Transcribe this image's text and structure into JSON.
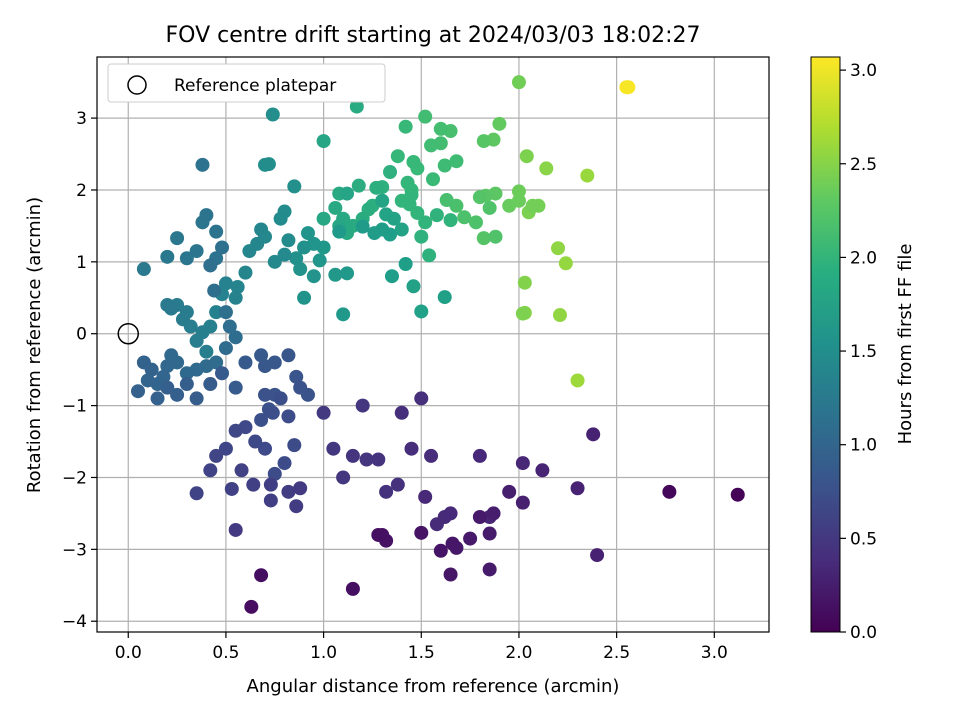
{
  "chart_data": {
    "type": "scatter",
    "title": "FOV centre drift starting at 2024/03/03 18:02:27",
    "xlabel": "Angular distance from reference (arcmin)",
    "ylabel": "Rotation from reference (arcmin)",
    "xlim": [
      -0.16,
      3.28
    ],
    "ylim": [
      -4.15,
      3.85
    ],
    "xticks": [
      "0.0",
      "0.5",
      "1.0",
      "1.5",
      "2.0",
      "2.5",
      "3.0"
    ],
    "xtick_values": [
      0,
      0.5,
      1.0,
      1.5,
      2.0,
      2.5,
      3.0
    ],
    "yticks": [
      "3",
      "2",
      "1",
      "0",
      "−1",
      "−2",
      "−3",
      "−4"
    ],
    "ytick_values": [
      3,
      2,
      1,
      0,
      -1,
      -2,
      -3,
      -4
    ],
    "grid": true,
    "legend": {
      "label": "Reference platepar",
      "placement": "top-left"
    },
    "reference_point": {
      "x": 0.0,
      "y": 0.0
    },
    "colorbar": {
      "label": "Hours from first FF file",
      "range": [
        0.0,
        3.07
      ],
      "ticks": [
        "0.0",
        "0.5",
        "1.0",
        "1.5",
        "2.0",
        "2.5",
        "3.0"
      ],
      "tick_values": [
        0,
        0.5,
        1.0,
        1.5,
        2.0,
        2.5,
        3.0
      ],
      "colormap": "viridis"
    },
    "points": [
      [
        2.56,
        3.43,
        3.05
      ],
      [
        2.55,
        3.43,
        3.04
      ],
      [
        2.3,
        -0.65,
        2.62
      ],
      [
        2.24,
        0.98,
        2.58
      ],
      [
        2.21,
        0.26,
        2.56
      ],
      [
        2.2,
        1.19,
        2.55
      ],
      [
        2.35,
        2.2,
        2.6
      ],
      [
        2.14,
        2.3,
        2.52
      ],
      [
        2.03,
        0.29,
        2.5
      ],
      [
        2.03,
        0.71,
        2.49
      ],
      [
        2.02,
        0.28,
        2.47
      ],
      [
        2.05,
        1.69,
        2.45
      ],
      [
        2.04,
        2.47,
        2.46
      ],
      [
        2.1,
        1.78,
        2.42
      ],
      [
        2.07,
        1.78,
        2.41
      ],
      [
        2.0,
        3.5,
        2.4
      ],
      [
        2.0,
        1.98,
        2.38
      ],
      [
        2.0,
        1.85,
        2.37
      ],
      [
        1.95,
        1.78,
        2.35
      ],
      [
        1.9,
        2.92,
        2.32
      ],
      [
        1.87,
        2.7,
        2.3
      ],
      [
        1.88,
        1.95,
        2.28
      ],
      [
        1.83,
        1.92,
        2.27
      ],
      [
        1.82,
        2.68,
        2.26
      ],
      [
        1.82,
        1.33,
        2.25
      ],
      [
        1.8,
        1.9,
        2.24
      ],
      [
        1.88,
        1.35,
        2.22
      ],
      [
        1.85,
        1.75,
        2.21
      ],
      [
        1.78,
        1.55,
        2.2
      ],
      [
        1.72,
        1.62,
        2.19
      ],
      [
        1.68,
        1.78,
        2.18
      ],
      [
        1.63,
        1.86,
        2.16
      ],
      [
        1.65,
        2.82,
        2.16
      ],
      [
        1.6,
        2.85,
        2.14
      ],
      [
        1.6,
        2.65,
        2.13
      ],
      [
        1.55,
        2.62,
        2.12
      ],
      [
        1.52,
        3.02,
        2.12
      ],
      [
        1.68,
        2.4,
        2.11
      ],
      [
        1.62,
        2.34,
        2.1
      ],
      [
        1.56,
        2.15,
        2.08
      ],
      [
        1.48,
        2.3,
        2.07
      ],
      [
        1.46,
        2.39,
        2.06
      ],
      [
        1.42,
        2.88,
        2.06
      ],
      [
        1.38,
        2.47,
        2.05
      ],
      [
        1.45,
        2.0,
        2.04
      ],
      [
        1.43,
        2.1,
        2.03
      ],
      [
        1.45,
        1.93,
        2.02
      ],
      [
        1.44,
        1.8,
        2.01
      ],
      [
        1.4,
        1.85,
        2.0
      ],
      [
        1.48,
        1.68,
        2.0
      ],
      [
        1.52,
        1.55,
        1.99
      ],
      [
        1.65,
        1.58,
        1.99
      ],
      [
        1.58,
        1.65,
        1.98
      ],
      [
        1.5,
        1.35,
        1.97
      ],
      [
        1.54,
        1.09,
        1.96
      ],
      [
        1.34,
        2.25,
        1.95
      ],
      [
        1.3,
        2.04,
        1.94
      ],
      [
        1.27,
        2.03,
        1.93
      ],
      [
        1.25,
        1.78,
        1.92
      ],
      [
        1.23,
        1.73,
        1.91
      ],
      [
        1.18,
        2.06,
        1.9
      ],
      [
        1.2,
        1.6,
        1.89
      ],
      [
        1.17,
        3.16,
        1.88
      ],
      [
        1.15,
        1.5,
        1.87
      ],
      [
        1.12,
        1.4,
        1.86
      ],
      [
        1.08,
        1.95,
        1.85
      ],
      [
        1.1,
        1.6,
        1.84
      ],
      [
        1.06,
        1.75,
        1.84
      ],
      [
        1.0,
        1.6,
        1.83
      ],
      [
        1.0,
        2.68,
        1.82
      ],
      [
        1.08,
        1.5,
        1.81
      ],
      [
        1.12,
        1.95,
        1.8
      ],
      [
        1.3,
        1.85,
        1.79
      ],
      [
        1.32,
        1.66,
        1.78
      ],
      [
        1.36,
        1.6,
        1.77
      ],
      [
        1.4,
        1.45,
        1.76
      ],
      [
        1.46,
        0.66,
        1.75
      ],
      [
        1.5,
        0.31,
        1.74
      ],
      [
        1.62,
        0.51,
        1.73
      ],
      [
        1.42,
        0.97,
        1.72
      ],
      [
        1.35,
        0.8,
        1.71
      ],
      [
        1.34,
        1.38,
        1.7
      ],
      [
        1.3,
        1.45,
        1.69
      ],
      [
        1.26,
        1.4,
        1.68
      ],
      [
        1.2,
        1.49,
        1.67
      ],
      [
        1.08,
        1.42,
        1.66
      ],
      [
        1.1,
        0.27,
        1.65
      ],
      [
        1.12,
        0.84,
        1.64
      ],
      [
        1.06,
        0.82,
        1.63
      ],
      [
        1.0,
        1.2,
        1.62
      ],
      [
        0.98,
        1.02,
        1.61
      ],
      [
        0.95,
        1.25,
        1.6
      ],
      [
        0.92,
        1.4,
        1.59
      ],
      [
        0.95,
        0.8,
        1.58
      ],
      [
        0.9,
        0.5,
        1.57
      ],
      [
        0.88,
        0.9,
        1.56
      ],
      [
        0.86,
        1.05,
        1.55
      ],
      [
        0.9,
        1.2,
        1.54
      ],
      [
        0.85,
        2.05,
        1.53
      ],
      [
        0.72,
        2.36,
        1.52
      ],
      [
        0.74,
        3.05,
        1.51
      ],
      [
        0.7,
        2.35,
        1.5
      ],
      [
        0.8,
        1.7,
        1.49
      ],
      [
        0.78,
        1.6,
        1.48
      ],
      [
        0.82,
        1.3,
        1.47
      ],
      [
        0.8,
        1.1,
        1.46
      ],
      [
        0.75,
        1.0,
        1.45
      ],
      [
        0.7,
        1.35,
        1.44
      ],
      [
        0.68,
        1.45,
        1.43
      ],
      [
        0.66,
        1.25,
        1.42
      ],
      [
        0.62,
        1.15,
        1.41
      ],
      [
        0.6,
        0.85,
        1.4
      ],
      [
        0.56,
        0.65,
        1.39
      ],
      [
        0.55,
        0.5,
        1.38
      ],
      [
        0.5,
        0.7,
        1.37
      ],
      [
        0.48,
        0.55,
        1.36
      ],
      [
        0.45,
        0.3,
        1.35
      ],
      [
        0.42,
        0.1,
        1.34
      ],
      [
        0.4,
        -0.25,
        1.33
      ],
      [
        0.38,
        0.02,
        1.32
      ],
      [
        0.35,
        -0.1,
        1.31
      ],
      [
        0.32,
        0.1,
        1.3
      ],
      [
        0.3,
        0.3,
        1.29
      ],
      [
        0.28,
        0.2,
        1.28
      ],
      [
        0.25,
        0.4,
        1.27
      ],
      [
        0.22,
        0.35,
        1.26
      ],
      [
        0.2,
        0.4,
        1.25
      ],
      [
        0.08,
        0.9,
        1.24
      ],
      [
        0.2,
        1.07,
        1.23
      ],
      [
        0.25,
        1.33,
        1.22
      ],
      [
        0.3,
        1.05,
        1.21
      ],
      [
        0.35,
        1.15,
        1.2
      ],
      [
        0.38,
        1.55,
        1.19
      ],
      [
        0.4,
        1.65,
        1.18
      ],
      [
        0.45,
        1.42,
        1.17
      ],
      [
        0.38,
        2.35,
        1.16
      ],
      [
        0.45,
        1.05,
        1.15
      ],
      [
        0.48,
        1.2,
        1.14
      ],
      [
        0.42,
        0.95,
        1.13
      ],
      [
        0.44,
        0.6,
        1.12
      ],
      [
        0.5,
        0.3,
        1.11
      ],
      [
        0.52,
        0.1,
        1.1
      ],
      [
        0.55,
        -0.05,
        1.09
      ],
      [
        0.5,
        -0.2,
        1.08
      ],
      [
        0.45,
        -0.4,
        1.07
      ],
      [
        0.4,
        -0.45,
        1.06
      ],
      [
        0.35,
        -0.5,
        1.05
      ],
      [
        0.3,
        -0.55,
        1.04
      ],
      [
        0.25,
        -0.4,
        1.03
      ],
      [
        0.22,
        -0.3,
        1.02
      ],
      [
        0.2,
        -0.45,
        1.01
      ],
      [
        0.18,
        -0.6,
        1.0
      ],
      [
        0.15,
        -0.7,
        0.99
      ],
      [
        0.1,
        -0.65,
        0.98
      ],
      [
        0.12,
        -0.5,
        0.97
      ],
      [
        0.08,
        -0.4,
        0.96
      ],
      [
        0.05,
        -0.8,
        0.95
      ],
      [
        0.15,
        -0.9,
        0.94
      ],
      [
        0.2,
        -0.75,
        0.93
      ],
      [
        0.25,
        -0.85,
        0.92
      ],
      [
        0.3,
        -0.7,
        0.91
      ],
      [
        0.35,
        -0.9,
        0.9
      ],
      [
        0.42,
        -0.7,
        0.89
      ],
      [
        0.48,
        -0.55,
        0.88
      ],
      [
        0.55,
        -0.75,
        0.87
      ],
      [
        0.6,
        -0.4,
        0.86
      ],
      [
        0.68,
        -0.3,
        0.85
      ],
      [
        0.7,
        -0.45,
        0.84
      ],
      [
        0.75,
        -0.4,
        0.83
      ],
      [
        0.82,
        -0.3,
        0.82
      ],
      [
        0.86,
        -0.6,
        0.81
      ],
      [
        0.88,
        -0.75,
        0.8
      ],
      [
        0.92,
        -0.85,
        0.79
      ],
      [
        0.75,
        -0.85,
        0.78
      ],
      [
        0.7,
        -0.85,
        0.77
      ],
      [
        0.72,
        -1.05,
        0.76
      ],
      [
        0.68,
        -1.2,
        0.75
      ],
      [
        0.74,
        -1.1,
        0.74
      ],
      [
        0.78,
        -0.9,
        0.73
      ],
      [
        0.82,
        -1.15,
        0.72
      ],
      [
        0.85,
        -1.55,
        0.71
      ],
      [
        0.8,
        -1.8,
        0.7
      ],
      [
        0.75,
        -1.95,
        0.69
      ],
      [
        0.7,
        -1.6,
        0.68
      ],
      [
        0.65,
        -1.5,
        0.67
      ],
      [
        0.6,
        -1.3,
        0.66
      ],
      [
        0.55,
        -1.35,
        0.65
      ],
      [
        0.5,
        -1.6,
        0.64
      ],
      [
        0.45,
        -1.7,
        0.63
      ],
      [
        0.42,
        -1.9,
        0.62
      ],
      [
        0.35,
        -2.22,
        0.61
      ],
      [
        0.53,
        -2.16,
        0.6
      ],
      [
        0.58,
        -1.9,
        0.59
      ],
      [
        0.64,
        -2.1,
        0.58
      ],
      [
        0.73,
        -2.1,
        0.57
      ],
      [
        0.73,
        -2.32,
        0.56
      ],
      [
        0.82,
        -2.2,
        0.55
      ],
      [
        0.86,
        -2.4,
        0.54
      ],
      [
        0.88,
        -2.15,
        0.53
      ],
      [
        0.55,
        -2.73,
        0.52
      ],
      [
        1.0,
        -1.1,
        0.51
      ],
      [
        1.05,
        -1.6,
        0.5
      ],
      [
        1.1,
        -2.0,
        0.49
      ],
      [
        1.2,
        -1.0,
        0.48
      ],
      [
        1.15,
        -1.7,
        0.47
      ],
      [
        1.22,
        -1.75,
        0.46
      ],
      [
        1.28,
        -1.75,
        0.45
      ],
      [
        1.32,
        -2.2,
        0.44
      ],
      [
        1.38,
        -2.1,
        0.43
      ],
      [
        1.4,
        -1.1,
        0.42
      ],
      [
        1.5,
        -0.9,
        0.41
      ],
      [
        1.45,
        -1.6,
        0.4
      ],
      [
        1.55,
        -1.7,
        0.39
      ],
      [
        1.58,
        -2.65,
        0.38
      ],
      [
        1.62,
        -2.55,
        0.37
      ],
      [
        1.65,
        -2.5,
        0.36
      ],
      [
        1.52,
        -2.27,
        0.35
      ],
      [
        1.8,
        -1.7,
        0.34
      ],
      [
        2.02,
        -1.8,
        0.33
      ],
      [
        1.85,
        -2.55,
        0.32
      ],
      [
        2.12,
        -1.9,
        0.31
      ],
      [
        2.3,
        -2.15,
        0.3
      ],
      [
        2.38,
        -1.4,
        0.29
      ],
      [
        2.4,
        -3.08,
        0.28
      ],
      [
        2.02,
        -2.35,
        0.27
      ],
      [
        1.95,
        -2.2,
        0.26
      ],
      [
        1.87,
        -2.5,
        0.25
      ],
      [
        1.85,
        -2.78,
        0.24
      ],
      [
        1.85,
        -3.28,
        0.23
      ],
      [
        1.8,
        -2.55,
        0.22
      ],
      [
        1.75,
        -2.85,
        0.21
      ],
      [
        1.68,
        -2.98,
        0.2
      ],
      [
        1.66,
        -2.92,
        0.19
      ],
      [
        1.65,
        -3.35,
        0.18
      ],
      [
        1.6,
        -3.02,
        0.17
      ],
      [
        1.5,
        -2.77,
        0.16
      ],
      [
        1.32,
        -2.88,
        0.15
      ],
      [
        1.3,
        -2.8,
        0.14
      ],
      [
        1.28,
        -2.8,
        0.13
      ],
      [
        1.15,
        -3.55,
        0.12
      ],
      [
        0.68,
        -3.36,
        0.11
      ],
      [
        0.63,
        -3.8,
        0.1
      ],
      [
        2.77,
        -2.2,
        0.05
      ],
      [
        3.12,
        -2.24,
        0.02
      ]
    ]
  }
}
